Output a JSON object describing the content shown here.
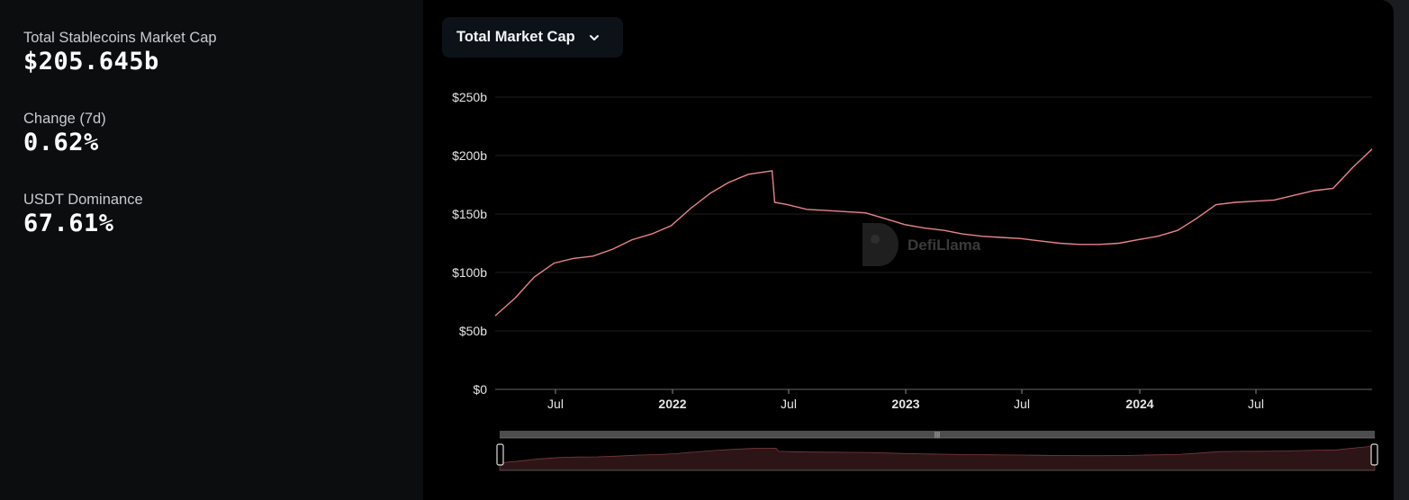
{
  "stats": {
    "market_cap": {
      "label": "Total Stablecoins Market Cap",
      "value": "$205.645b"
    },
    "change_7d": {
      "label": "Change (7d)",
      "value": "0.62%"
    },
    "usdt_dominance": {
      "label": "USDT Dominance",
      "value": "67.61%"
    }
  },
  "chart_selector": {
    "selected": "Total Market Cap"
  },
  "watermark": {
    "text": "DefiLlama"
  },
  "colors": {
    "line": "#e8858a",
    "area": "#2a1416",
    "background": "#000000",
    "panel": "#0b0d0f"
  },
  "chart_data": {
    "type": "line",
    "title": "Total Market Cap",
    "xlabel": "",
    "ylabel": "",
    "ylim": [
      0,
      250
    ],
    "y_ticks": [
      "$0",
      "$50b",
      "$100b",
      "$150b",
      "$200b",
      "$250b"
    ],
    "x_ticks": [
      {
        "label": "Jul",
        "bold": false
      },
      {
        "label": "2022",
        "bold": true
      },
      {
        "label": "Jul",
        "bold": false
      },
      {
        "label": "2023",
        "bold": true
      },
      {
        "label": "Jul",
        "bold": false
      },
      {
        "label": "2024",
        "bold": true
      },
      {
        "label": "Jul",
        "bold": false
      }
    ],
    "grid": true,
    "legend": "none",
    "series": [
      {
        "name": "Total Stablecoins Market Cap ($b)",
        "x": [
          "2021-03",
          "2021-04",
          "2021-05",
          "2021-06",
          "2021-07",
          "2021-08",
          "2021-09",
          "2021-10",
          "2021-11",
          "2021-12",
          "2022-01",
          "2022-02",
          "2022-03",
          "2022-04",
          "2022-05-08",
          "2022-05-12",
          "2022-06",
          "2022-07",
          "2022-08",
          "2022-09",
          "2022-10",
          "2022-11",
          "2022-12",
          "2023-01",
          "2023-02",
          "2023-03",
          "2023-04",
          "2023-05",
          "2023-06",
          "2023-07",
          "2023-08",
          "2023-09",
          "2023-10",
          "2023-11",
          "2023-12",
          "2024-01",
          "2024-02",
          "2024-03",
          "2024-04",
          "2024-05",
          "2024-06",
          "2024-07",
          "2024-08",
          "2024-09",
          "2024-10",
          "2024-11",
          "2024-12"
        ],
        "values": [
          63,
          78,
          96,
          108,
          112,
          114,
          120,
          128,
          133,
          140,
          155,
          168,
          177,
          184,
          187,
          160,
          158,
          154,
          153,
          152,
          151,
          146,
          141,
          138,
          136,
          133,
          131,
          130,
          129,
          127,
          125,
          124,
          124,
          125,
          128,
          131,
          136,
          146,
          158,
          160,
          161,
          162,
          166,
          170,
          172,
          190,
          205.6
        ]
      }
    ]
  }
}
